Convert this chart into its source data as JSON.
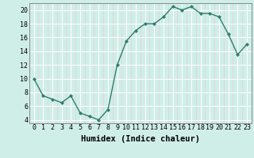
{
  "x": [
    0,
    1,
    2,
    3,
    4,
    5,
    6,
    7,
    8,
    9,
    10,
    11,
    12,
    13,
    14,
    15,
    16,
    17,
    18,
    19,
    20,
    21,
    22,
    23
  ],
  "y": [
    10,
    7.5,
    7,
    6.5,
    7.5,
    5,
    4.5,
    4,
    5.5,
    12,
    15.5,
    17,
    18,
    18,
    19,
    20.5,
    20,
    20.5,
    19.5,
    19.5,
    19,
    16.5,
    13.5,
    15
  ],
  "line_color": "#2e7d6e",
  "marker": "D",
  "marker_size": 2.2,
  "bg_color": "#d0eee8",
  "grid_color": "#ffffff",
  "grid_minor_color": "#e8f5f2",
  "xlabel": "Humidex (Indice chaleur)",
  "xlabel_fontsize": 7.5,
  "xlim": [
    -0.5,
    23.5
  ],
  "ylim": [
    3.5,
    21.0
  ],
  "yticks": [
    4,
    6,
    8,
    10,
    12,
    14,
    16,
    18,
    20
  ],
  "xticks": [
    0,
    1,
    2,
    3,
    4,
    5,
    6,
    7,
    8,
    9,
    10,
    11,
    12,
    13,
    14,
    15,
    16,
    17,
    18,
    19,
    20,
    21,
    22,
    23
  ],
  "tick_fontsize": 6.0,
  "line_width": 1.0,
  "spine_color": "#888888"
}
